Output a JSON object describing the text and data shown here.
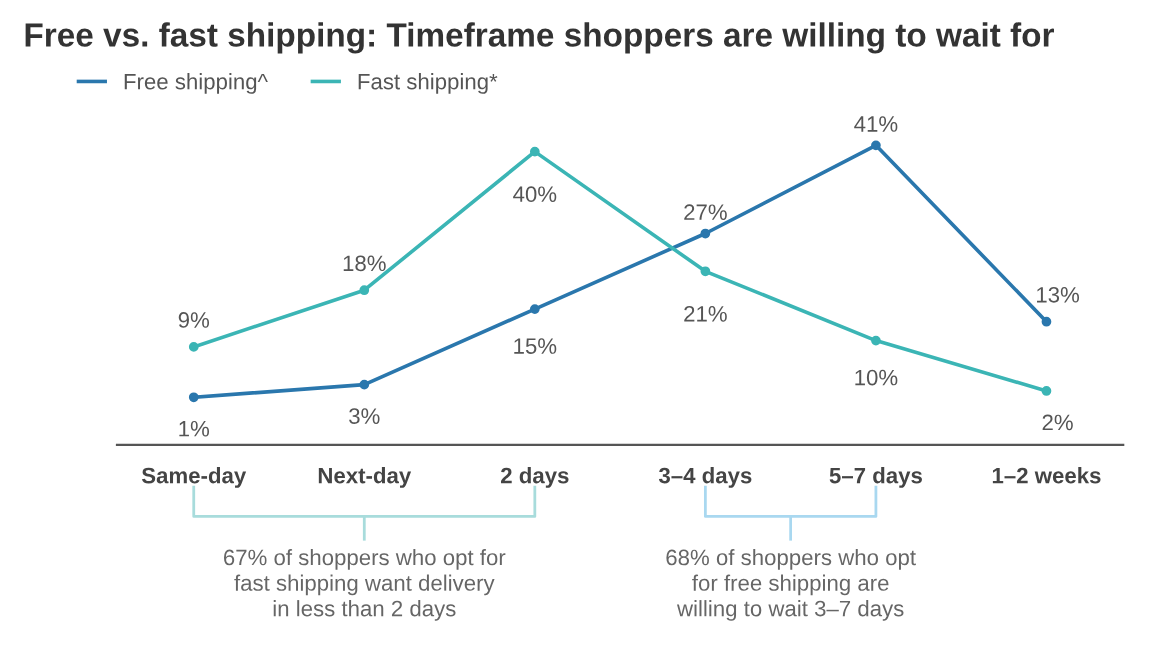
{
  "chart_data": {
    "type": "line",
    "title": "Free vs. fast shipping: Timeframe shoppers are willing to wait for",
    "categories": [
      "Same-day",
      "Next-day",
      "2 days",
      "3–4 days",
      "5–7 days",
      "1–2 weeks"
    ],
    "series": [
      {
        "name": "Free shipping^",
        "color": "#2a77ad",
        "values": [
          1,
          3,
          15,
          27,
          41,
          13
        ],
        "value_labels": [
          "1%",
          "3%",
          "15%",
          "27%",
          "41%",
          "13%"
        ]
      },
      {
        "name": "Fast shipping*",
        "color": "#3bb5b5",
        "values": [
          9,
          18,
          40,
          21,
          10,
          2
        ],
        "value_labels": [
          "9%",
          "18%",
          "40%",
          "21%",
          "10%",
          "2%"
        ]
      }
    ],
    "relative": false,
    "marker": "circle",
    "line_style": "solid",
    "grid": false,
    "legend": "top left",
    "annotations": [
      "67% of shoppers who opt for fast shipping want delivery in less than 2 days",
      "68% of shoppers who opt for free shipping are willing to wait 3–7 days"
    ]
  }
}
